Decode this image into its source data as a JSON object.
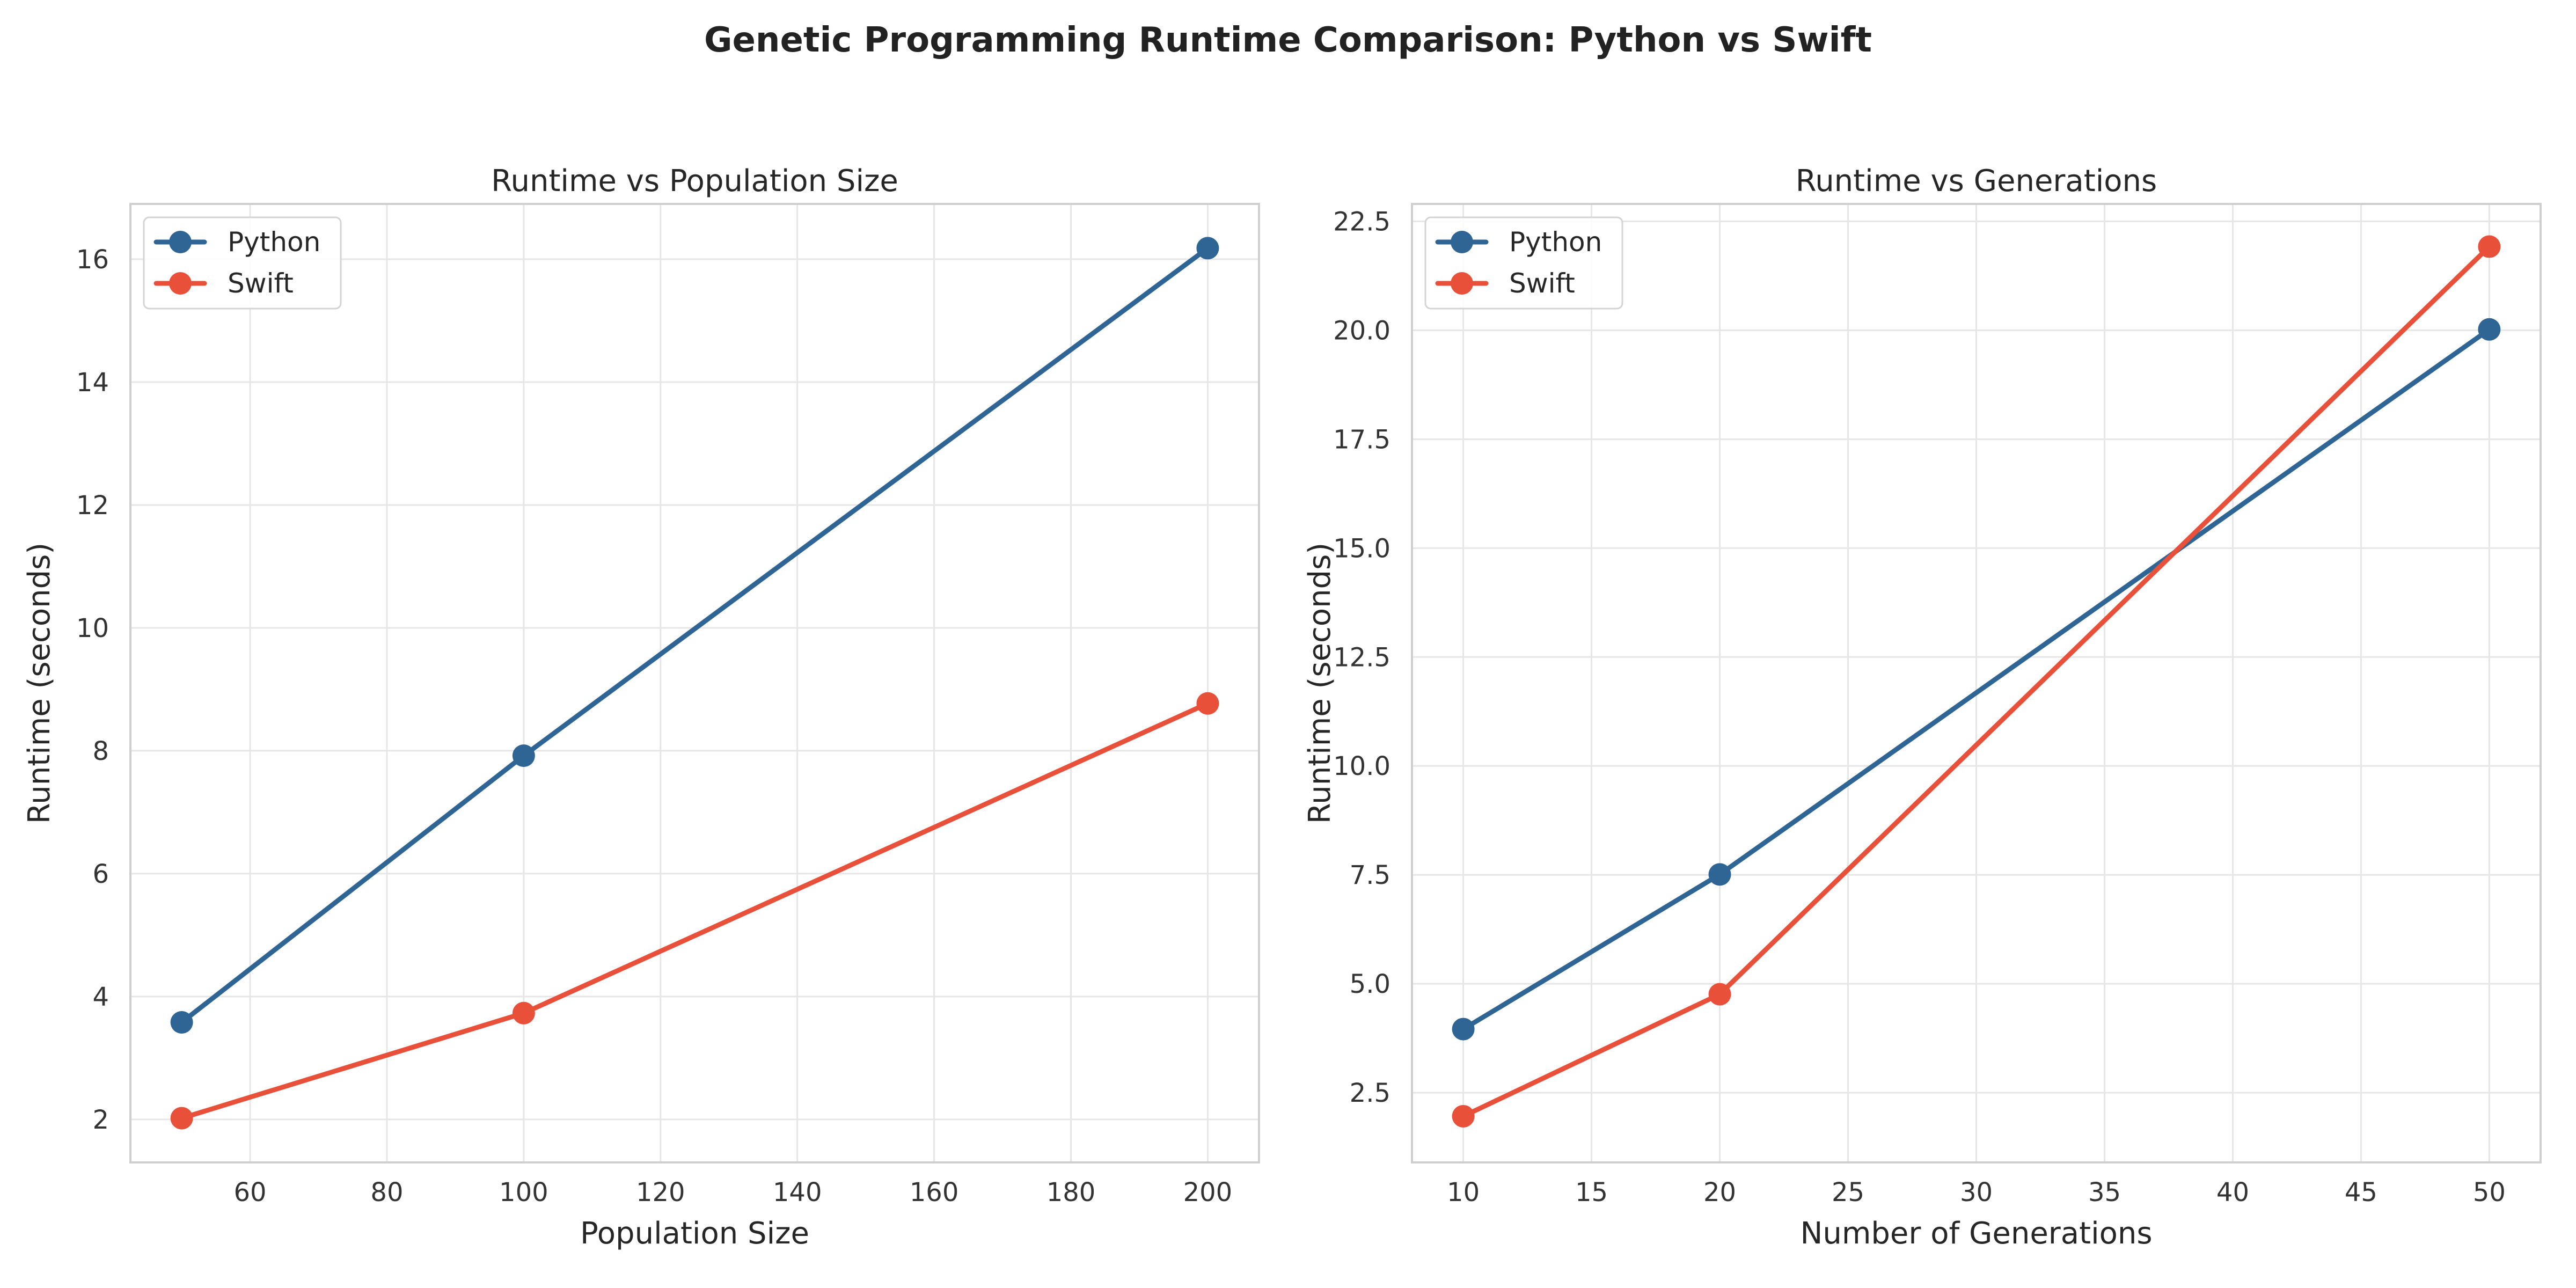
{
  "figure_title": "Genetic Programming Runtime Comparison: Python vs Swift",
  "colors": {
    "python": "#2e6594",
    "swift": "#e8503a"
  },
  "chart_data": [
    {
      "type": "line",
      "title": "Runtime vs Population Size",
      "xlabel": "Population Size",
      "ylabel": "Runtime (seconds)",
      "x": [
        50,
        100,
        200
      ],
      "xlim": [
        42.5,
        207.5
      ],
      "ylim": [
        1.3,
        16.9
      ],
      "xticks": [
        60,
        80,
        100,
        120,
        140,
        160,
        180,
        200
      ],
      "yticks": [
        2,
        4,
        6,
        8,
        10,
        12,
        14,
        16
      ],
      "grid": true,
      "legend": "top-left",
      "series": [
        {
          "name": "Python",
          "color": "#2e6594",
          "values": [
            3.58,
            7.92,
            16.18
          ]
        },
        {
          "name": "Swift",
          "color": "#e8503a",
          "values": [
            2.02,
            3.73,
            8.77
          ]
        }
      ]
    },
    {
      "type": "line",
      "title": "Runtime vs Generations",
      "xlabel": "Number of Generations",
      "ylabel": "Runtime (seconds)",
      "x": [
        10,
        20,
        50
      ],
      "xlim": [
        8.0,
        52.0
      ],
      "ylim": [
        0.9,
        22.9
      ],
      "xticks": [
        10,
        15,
        20,
        25,
        30,
        35,
        40,
        45,
        50
      ],
      "yticks": [
        2.5,
        5.0,
        7.5,
        10.0,
        12.5,
        15.0,
        17.5,
        20.0,
        22.5
      ],
      "grid": true,
      "legend": "top-left",
      "series": [
        {
          "name": "Python",
          "color": "#2e6594",
          "values": [
            3.96,
            7.51,
            20.02
          ]
        },
        {
          "name": "Swift",
          "color": "#e8503a",
          "values": [
            1.96,
            4.76,
            21.92
          ]
        }
      ]
    }
  ]
}
